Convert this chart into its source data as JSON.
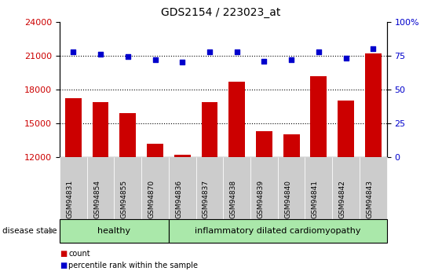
{
  "title": "GDS2154 / 223023_at",
  "samples": [
    "GSM94831",
    "GSM94854",
    "GSM94855",
    "GSM94870",
    "GSM94836",
    "GSM94837",
    "GSM94838",
    "GSM94839",
    "GSM94840",
    "GSM94841",
    "GSM94842",
    "GSM94843"
  ],
  "counts": [
    17200,
    16900,
    15900,
    13200,
    12200,
    16900,
    18700,
    14300,
    14000,
    19200,
    17000,
    21200
  ],
  "percentile_ranks": [
    78,
    76,
    74,
    72,
    70,
    78,
    78,
    71,
    72,
    78,
    73,
    80
  ],
  "ylim_left": [
    12000,
    24000
  ],
  "ylim_right": [
    0,
    100
  ],
  "yticks_left": [
    12000,
    15000,
    18000,
    21000,
    24000
  ],
  "yticks_right": [
    0,
    25,
    50,
    75,
    100
  ],
  "bar_color": "#cc0000",
  "dot_color": "#0000cc",
  "bar_width": 0.6,
  "n_healthy": 4,
  "n_disease": 8,
  "healthy_label": "healthy",
  "disease_label": "inflammatory dilated cardiomyopathy",
  "disease_state_label": "disease state",
  "legend_count": "count",
  "legend_percentile": "percentile rank within the sample",
  "healthy_bg": "#aae8aa",
  "disease_bg": "#aae8aa",
  "label_bg": "#cccccc",
  "dotted_line_color": "#000000",
  "grid_lines": [
    15000,
    18000,
    21000
  ],
  "left_axis_color": "#cc0000",
  "right_axis_color": "#0000cc",
  "title_fontsize": 10
}
